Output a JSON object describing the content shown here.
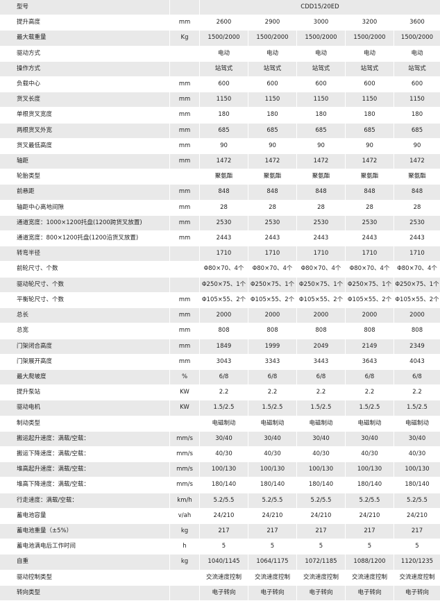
{
  "table": {
    "header": {
      "label": "型号",
      "model": "CDD15/20ED"
    },
    "rows": [
      {
        "label": "提升高度",
        "unit": "mm",
        "values": [
          "2600",
          "2900",
          "3000",
          "3200",
          "3600"
        ]
      },
      {
        "label": "最大载重量",
        "unit": "Kg",
        "values": [
          "1500/2000",
          "1500/2000",
          "1500/2000",
          "1500/2000",
          "1500/2000"
        ]
      },
      {
        "label": "驱动方式",
        "unit": null,
        "values": [
          "电动",
          "电动",
          "电动",
          "电动",
          "电动"
        ]
      },
      {
        "label": "操作方式",
        "unit": null,
        "values": [
          "站驾式",
          "站驾式",
          "站驾式",
          "站驾式",
          "站驾式"
        ]
      },
      {
        "label": "负载中心",
        "unit": "mm",
        "values": [
          "600",
          "600",
          "600",
          "600",
          "600"
        ]
      },
      {
        "label": "货叉长度",
        "unit": "mm",
        "values": [
          "1150",
          "1150",
          "1150",
          "1150",
          "1150"
        ]
      },
      {
        "label": "单根货叉宽度",
        "unit": "mm",
        "values": [
          "180",
          "180",
          "180",
          "180",
          "180"
        ]
      },
      {
        "label": "两根货叉外宽",
        "unit": "mm",
        "values": [
          "685",
          "685",
          "685",
          "685",
          "685"
        ]
      },
      {
        "label": "货叉最低高度",
        "unit": "mm",
        "values": [
          "90",
          "90",
          "90",
          "90",
          "90"
        ]
      },
      {
        "label": "轴距",
        "unit": "mm",
        "values": [
          "1472",
          "1472",
          "1472",
          "1472",
          "1472"
        ]
      },
      {
        "label": "轮胎类型",
        "unit": null,
        "values": [
          "聚氨酯",
          "聚氨酯",
          "聚氨酯",
          "聚氨酯",
          "聚氨酯"
        ]
      },
      {
        "label": "前悬距",
        "unit": "mm",
        "values": [
          "848",
          "848",
          "848",
          "848",
          "848"
        ]
      },
      {
        "label": "轴距中心离地间隙",
        "unit": "mm",
        "values": [
          "28",
          "28",
          "28",
          "28",
          "28"
        ]
      },
      {
        "label": "通道宽度：1000×1200托盘(1200跨货叉放置)",
        "unit": "mm",
        "values": [
          "2530",
          "2530",
          "2530",
          "2530",
          "2530"
        ]
      },
      {
        "label": "通道宽度：800×1200托盘(1200沿货叉放置)",
        "unit": "mm",
        "values": [
          "2443",
          "2443",
          "2443",
          "2443",
          "2443"
        ]
      },
      {
        "label": "转弯半径",
        "unit": null,
        "values": [
          "1710",
          "1710",
          "1710",
          "1710",
          "1710"
        ]
      },
      {
        "label": "前轮尺寸、个数",
        "unit": null,
        "values": [
          "Φ80×70、4个",
          "Φ80×70、4个",
          "Φ80×70、4个",
          "Φ80×70、4个",
          "Φ80×70、4个"
        ]
      },
      {
        "label": "驱动轮尺寸、个数",
        "unit": null,
        "values": [
          "Φ250×75、1个",
          "Φ250×75、1个",
          "Φ250×75、1个",
          "Φ250×75、1个",
          "Φ250×75、1个"
        ]
      },
      {
        "label": "平衡轮尺寸、个数",
        "unit": "mm",
        "values": [
          "Φ105×55、2个",
          "Φ105×55、2个",
          "Φ105×55、2个",
          "Φ105×55、2个",
          "Φ105×55、2个"
        ]
      },
      {
        "label": "总长",
        "unit": "mm",
        "values": [
          "2000",
          "2000",
          "2000",
          "2000",
          "2000"
        ]
      },
      {
        "label": "总宽",
        "unit": "mm",
        "values": [
          "808",
          "808",
          "808",
          "808",
          "808"
        ]
      },
      {
        "label": "门架闭合高度",
        "unit": "mm",
        "values": [
          "1849",
          "1999",
          "2049",
          "2149",
          "2349"
        ]
      },
      {
        "label": "门架展开高度",
        "unit": "mm",
        "values": [
          "3043",
          "3343",
          "3443",
          "3643",
          "4043"
        ]
      },
      {
        "label": "最大爬坡度",
        "unit": "%",
        "values": [
          "6/8",
          "6/8",
          "6/8",
          "6/8",
          "6/8"
        ]
      },
      {
        "label": "提升泵站",
        "unit": "KW",
        "values": [
          "2.2",
          "2.2",
          "2.2",
          "2.2",
          "2.2"
        ]
      },
      {
        "label": "驱动电机",
        "unit": "KW",
        "values": [
          "1.5/2.5",
          "1.5/2.5",
          "1.5/2.5",
          "1.5/2.5",
          "1.5/2.5"
        ]
      },
      {
        "label": "制动类型",
        "unit": null,
        "values": [
          "电磁制动",
          "电磁制动",
          "电磁制动",
          "电磁制动",
          "电磁制动"
        ]
      },
      {
        "label": "搬运起升速度：满载/空载：",
        "unit": "mm/s",
        "values": [
          "30/40",
          "30/40",
          "30/40",
          "30/40",
          "30/40"
        ]
      },
      {
        "label": "搬运下降速度：满载/空载：",
        "unit": "mm/s",
        "values": [
          "40/30",
          "40/30",
          "40/30",
          "40/30",
          "40/30"
        ]
      },
      {
        "label": "堆高起升速度：满载/空载：",
        "unit": "mm/s",
        "values": [
          "100/130",
          "100/130",
          "100/130",
          "100/130",
          "100/130"
        ]
      },
      {
        "label": "堆高下降速度：满载/空载：",
        "unit": "mm/s",
        "values": [
          "180/140",
          "180/140",
          "180/140",
          "180/140",
          "180/140"
        ]
      },
      {
        "label": "行走速度：满载/空载：",
        "unit": "km/h",
        "values": [
          "5.2/5.5",
          "5.2/5.5",
          "5.2/5.5",
          "5.2/5.5",
          "5.2/5.5"
        ]
      },
      {
        "label": "蓄电池容量",
        "unit": "v/ah",
        "values": [
          "24/210",
          "24/210",
          "24/210",
          "24/210",
          "24/210"
        ]
      },
      {
        "label": "蓄电池重量（±5%）",
        "unit": "kg",
        "values": [
          "217",
          "217",
          "217",
          "217",
          "217"
        ]
      },
      {
        "label": "蓄电池满电后工作时间",
        "unit": "h",
        "values": [
          "5",
          "5",
          "5",
          "5",
          "5"
        ]
      },
      {
        "label": "自重",
        "unit": "kg",
        "values": [
          "1040/1145",
          "1064/1175",
          "1072/1185",
          "1088/1200",
          "1120/1235"
        ]
      },
      {
        "label": "驱动控制类型",
        "unit": null,
        "values": [
          "交流速度控制",
          "交流速度控制",
          "交流速度控制",
          "交流速度控制",
          "交流速度控制"
        ]
      },
      {
        "label": "转向类型",
        "unit": null,
        "values": [
          "电子转向",
          "电子转向",
          "电子转向",
          "电子转向",
          "电子转向"
        ]
      }
    ]
  }
}
